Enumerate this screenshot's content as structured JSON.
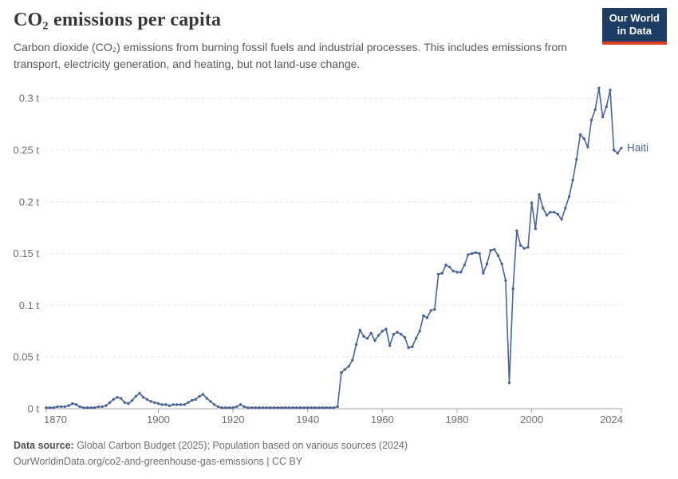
{
  "header": {
    "title": "CO₂ emissions per capita",
    "subtitle": "Carbon dioxide (CO₂) emissions from burning fossil fuels and industrial processes. This includes emissions from transport, electricity generation, and heating, but not land-use change.",
    "logo": {
      "line1": "Our World",
      "line2": "in Data",
      "bg_color": "#1d3d63",
      "accent_color": "#dc3e26"
    }
  },
  "chart_data": {
    "type": "line",
    "title": "CO₂ emissions per capita",
    "unit": "t",
    "xlabel": "",
    "ylabel": "",
    "xlim": [
      1870,
      2024
    ],
    "ylim": [
      0,
      0.31
    ],
    "grid": "horizontal-dashed",
    "legend_position": "end-of-line-label",
    "xticks": [
      1870,
      1900,
      1920,
      1940,
      1960,
      1980,
      2000,
      2024
    ],
    "yticks": [
      {
        "value": 0,
        "label": "0 t"
      },
      {
        "value": 0.05,
        "label": "0.05 t"
      },
      {
        "value": 0.1,
        "label": "0.1 t"
      },
      {
        "value": 0.15,
        "label": "0.15 t"
      },
      {
        "value": 0.2,
        "label": "0.2 t"
      },
      {
        "value": 0.25,
        "label": "0.25 t"
      },
      {
        "value": 0.3,
        "label": "0.3 t"
      }
    ],
    "x_start": 1870,
    "x_step": 1,
    "series": [
      {
        "name": "Haiti",
        "color": "#486499",
        "values": [
          0.001,
          0.001,
          0.001,
          0.002,
          0.002,
          0.002,
          0.003,
          0.005,
          0.004,
          0.002,
          0.001,
          0.001,
          0.001,
          0.001,
          0.002,
          0.002,
          0.003,
          0.006,
          0.009,
          0.011,
          0.01,
          0.006,
          0.005,
          0.008,
          0.012,
          0.015,
          0.011,
          0.009,
          0.007,
          0.006,
          0.005,
          0.004,
          0.004,
          0.003,
          0.004,
          0.004,
          0.004,
          0.004,
          0.006,
          0.008,
          0.009,
          0.012,
          0.014,
          0.01,
          0.007,
          0.004,
          0.002,
          0.001,
          0.001,
          0.001,
          0.001,
          0.002,
          0.004,
          0.002,
          0.001,
          0.001,
          0.001,
          0.001,
          0.001,
          0.001,
          0.001,
          0.001,
          0.001,
          0.001,
          0.001,
          0.001,
          0.001,
          0.001,
          0.001,
          0.001,
          0.001,
          0.001,
          0.001,
          0.001,
          0.001,
          0.001,
          0.001,
          0.001,
          0.002,
          0.035,
          0.038,
          0.041,
          0.047,
          0.062,
          0.076,
          0.07,
          0.068,
          0.073,
          0.066,
          0.071,
          0.075,
          0.077,
          0.061,
          0.072,
          0.074,
          0.072,
          0.069,
          0.059,
          0.06,
          0.068,
          0.075,
          0.09,
          0.088,
          0.095,
          0.096,
          0.13,
          0.131,
          0.139,
          0.137,
          0.133,
          0.132,
          0.132,
          0.139,
          0.149,
          0.15,
          0.151,
          0.15,
          0.131,
          0.14,
          0.153,
          0.154,
          0.148,
          0.14,
          0.124,
          0.025,
          0.116,
          0.172,
          0.158,
          0.155,
          0.156,
          0.199,
          0.174,
          0.207,
          0.194,
          0.187,
          0.19,
          0.19,
          0.188,
          0.183,
          0.194,
          0.205,
          0.221,
          0.241,
          0.265,
          0.261,
          0.253,
          0.279,
          0.289,
          0.31,
          0.282,
          0.292,
          0.308,
          0.25,
          0.247,
          0.252
        ]
      }
    ]
  },
  "footer": {
    "source_label": "Data source:",
    "source_text": " Global Carbon Budget (2025); Population based on various sources (2024)",
    "link_line": "OurWorldinData.org/co2-and-greenhouse-gas-emissions | CC BY"
  }
}
